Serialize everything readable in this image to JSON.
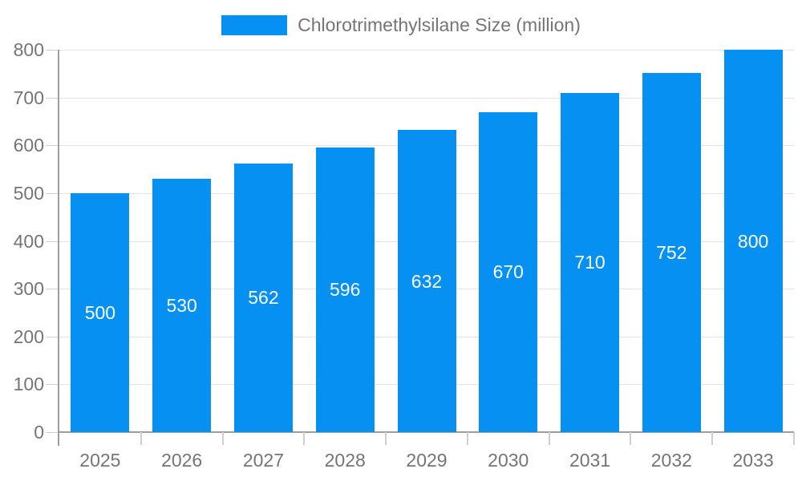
{
  "chart_data": {
    "type": "bar",
    "title": "Chlorotrimethylsilane Size (million)",
    "categories": [
      "2025",
      "2026",
      "2027",
      "2028",
      "2029",
      "2030",
      "2031",
      "2032",
      "2033"
    ],
    "values": [
      500,
      530,
      562,
      596,
      632,
      670,
      710,
      752,
      800
    ],
    "xlabel": "",
    "ylabel": "",
    "ylim": [
      0,
      800
    ],
    "ytick_step": 100,
    "grid": true,
    "legend_position": "top",
    "bar_color": "#0590f2",
    "bar_label_color": "#ffffff",
    "axis_text_color": "#757575",
    "axis_line_color": "#9e9e9e",
    "grid_color": "#e3e3e3",
    "tick_color": "#cfcfcf",
    "background_color": "#ffffff"
  }
}
